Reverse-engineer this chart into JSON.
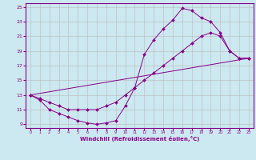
{
  "xlabel": "Windchill (Refroidissement éolien,°C)",
  "bg_color": "#cce8f0",
  "line_color": "#880088",
  "grid_color": "#bbbbbb",
  "xlim": [
    -0.5,
    23.5
  ],
  "ylim": [
    8.5,
    25.5
  ],
  "xticks": [
    0,
    1,
    2,
    3,
    4,
    5,
    6,
    7,
    8,
    9,
    10,
    11,
    12,
    13,
    14,
    15,
    16,
    17,
    18,
    19,
    20,
    21,
    22,
    23
  ],
  "yticks": [
    9,
    11,
    13,
    15,
    17,
    19,
    21,
    23,
    25
  ],
  "line1_x": [
    0,
    1,
    2,
    3,
    4,
    5,
    6,
    7,
    8,
    9,
    10,
    11,
    12,
    13,
    14,
    15,
    16,
    17,
    18,
    19,
    20,
    21,
    22,
    23
  ],
  "line1_y": [
    13,
    12.3,
    11.0,
    10.5,
    10.0,
    9.5,
    9.2,
    9.0,
    9.2,
    9.5,
    11.5,
    14.0,
    18.5,
    20.5,
    22.0,
    23.2,
    24.8,
    24.5,
    23.5,
    23.0,
    21.5,
    19.0,
    18.0,
    18.0
  ],
  "line2_x": [
    0,
    1,
    2,
    3,
    4,
    5,
    6,
    7,
    8,
    9,
    10,
    11,
    12,
    13,
    14,
    15,
    16,
    17,
    18,
    19,
    20,
    21,
    22,
    23
  ],
  "line2_y": [
    13,
    12.5,
    12.0,
    11.5,
    11.0,
    11.0,
    11.0,
    11.0,
    11.5,
    12.0,
    13.0,
    14.0,
    15.0,
    16.0,
    17.0,
    18.0,
    19.0,
    20.0,
    21.0,
    21.5,
    21.0,
    19.0,
    18.0,
    18.0
  ],
  "line3_x": [
    0,
    23
  ],
  "line3_y": [
    13,
    18
  ]
}
